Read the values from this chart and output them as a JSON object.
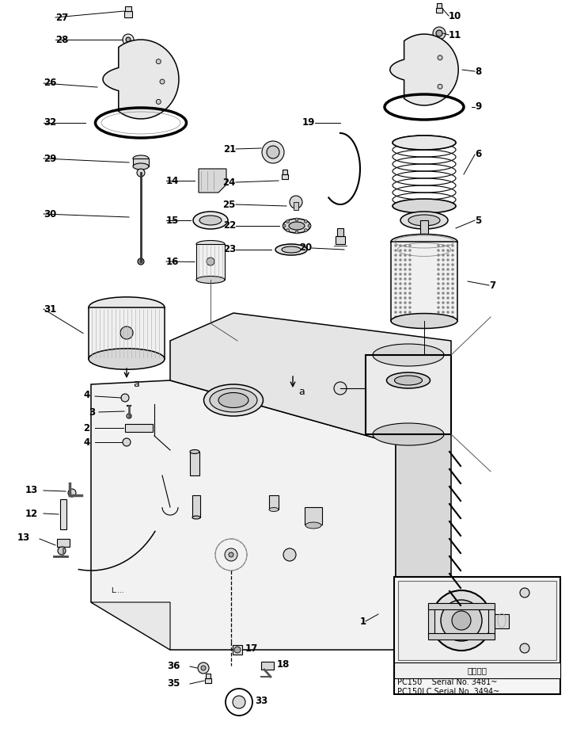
{
  "bg_color": "#ffffff",
  "lc": "#000000",
  "figsize": [
    7.19,
    9.25
  ],
  "dpi": 100,
  "inset_text_line1": "適用号機",
  "inset_text_line2": "PC150    Serial No. 3481~",
  "inset_text_line3": "PC150LC Serial No. 3494~"
}
